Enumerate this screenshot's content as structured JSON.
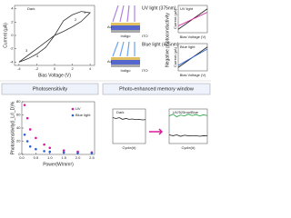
{
  "chart_data": [
    {
      "type": "line",
      "xlabel": "Bias Voltage (V)",
      "ylabel": "Current (μA)",
      "annotations": [
        "Dark",
        "1",
        "2",
        "3",
        "4"
      ],
      "x": [
        -4,
        -3,
        -2,
        -1,
        0,
        1,
        2,
        3,
        4,
        3,
        2,
        1,
        0,
        -1,
        -2,
        -3,
        -4
      ],
      "series": [
        {
          "name": "Dark",
          "color": "#333333",
          "values": [
            -4,
            -3.5,
            -2.8,
            -1.8,
            0,
            0.6,
            1.3,
            2.1,
            3.4,
            3.6,
            3.1,
            2.2,
            0,
            -1,
            -2,
            -3,
            -4
          ]
        }
      ],
      "xlim": [
        -4.5,
        4.5
      ],
      "xticks": [
        -4,
        -2,
        0,
        2,
        4
      ],
      "ylim": [
        -4.5,
        4.5
      ],
      "yticks": [
        -4,
        -2,
        0,
        2,
        4
      ]
    },
    {
      "type": "scatter",
      "title": "Photosensitivity",
      "xlabel": "Power(W/mm²)",
      "ylabel": "Photosensitivity(I_L/I_D)%",
      "x": [
        0.1,
        0.2,
        0.3,
        0.5,
        0.8,
        1.0,
        1.5,
        2.0,
        2.5
      ],
      "series": [
        {
          "name": "UV",
          "color": "#d81b9a",
          "values": [
            75,
            55,
            38,
            25,
            15,
            10,
            6,
            4,
            3
          ]
        },
        {
          "name": "Blue light",
          "color": "#2c5fd6",
          "values": [
            30,
            20,
            12,
            8,
            5,
            4,
            3,
            2,
            2
          ]
        }
      ],
      "xlim": [
        0,
        2.6
      ],
      "xticks": [
        {
          "value": 0,
          "label": "0.0"
        },
        {
          "value": 0.5,
          "label": "0.5"
        },
        {
          "value": 1,
          "label": "1.0"
        },
        {
          "value": 1.5,
          "label": "1.5"
        },
        {
          "value": 2,
          "label": "2.0"
        },
        {
          "value": 2.5,
          "label": "2.5"
        }
      ],
      "ylim": [
        0,
        80
      ],
      "yticks": [
        0,
        20,
        40,
        60,
        80
      ],
      "legend": "upper right"
    },
    {
      "type": "line",
      "xlabel": "Cycle(#)",
      "annotations": [
        "Dark"
      ],
      "x": [
        0,
        1,
        2,
        3,
        4,
        5,
        6,
        7,
        8,
        9,
        10
      ],
      "series": [
        {
          "name": "Dark",
          "color": "#222222",
          "values": [
            1.5,
            1.45,
            1.5,
            1.4,
            1.45,
            1.4,
            1.42,
            1.38,
            1.4,
            1.37,
            1.38
          ]
        }
      ],
      "xlim": [
        0,
        10
      ],
      "ylim": [
        0,
        2
      ]
    },
    {
      "type": "line",
      "xlabel": "Cycle(#)",
      "annotations": [
        "UV/525nm/Blue"
      ],
      "x": [
        0,
        1,
        2,
        3,
        4,
        5,
        6,
        7,
        8,
        9,
        10
      ],
      "series": [
        {
          "name": "UV",
          "color": "#1a9e3a",
          "values": [
            1.6,
            1.7,
            1.55,
            1.65,
            1.6,
            1.7,
            1.62,
            1.68,
            1.6,
            1.66,
            1.62
          ]
        },
        {
          "name": "Blue",
          "color": "#222222",
          "values": [
            0.5,
            0.45,
            0.5,
            0.42,
            0.48,
            0.45,
            0.44,
            0.46,
            0.42,
            0.45,
            0.44
          ]
        }
      ],
      "xlim": [
        0,
        10
      ],
      "ylim": [
        0,
        2
      ]
    },
    {
      "type": "line",
      "xlabel": "Bias Voltage (V)",
      "ylabel": "Current (μA)",
      "annotations": [
        "UV light"
      ],
      "x": [
        -4,
        -2,
        0,
        2,
        4
      ],
      "series": [
        {
          "name": "Dark",
          "color": "#222222",
          "values": [
            -3,
            -1.5,
            0,
            1.5,
            3
          ]
        },
        {
          "name": "UV light",
          "color": "#d81b9a",
          "values": [
            -2,
            -1,
            0,
            1,
            2
          ]
        }
      ],
      "xlim": [
        -4,
        4
      ],
      "ylim": [
        -4,
        4
      ]
    },
    {
      "type": "line",
      "xlabel": "Bias Voltage (V)",
      "ylabel": "Current (μA)",
      "annotations": [
        "Blue light"
      ],
      "x": [
        -4,
        -2,
        0,
        2,
        4
      ],
      "series": [
        {
          "name": "Dark",
          "color": "#222222",
          "values": [
            -3,
            -1.5,
            0,
            1.5,
            3
          ]
        },
        {
          "name": "Blue light",
          "color": "#2c5fd6",
          "values": [
            -2.4,
            -1.2,
            0,
            1.2,
            2.4
          ]
        }
      ],
      "xlim": [
        -4,
        4
      ],
      "ylim": [
        -4,
        4
      ]
    }
  ],
  "labels": {
    "uv": "UV light (375nm)",
    "blue": "Blue light (475nm)",
    "layers": [
      "Au",
      "Indigo",
      "ITO"
    ],
    "side": "Negative photoconductivity",
    "memory_title": "Photo-enhanced memory window"
  }
}
